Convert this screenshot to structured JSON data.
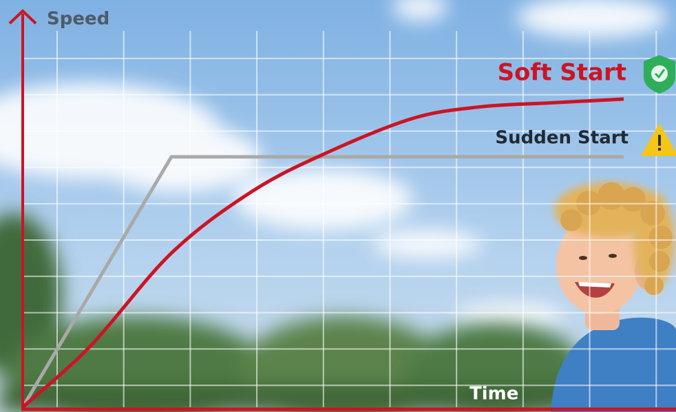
{
  "chart_data": {
    "type": "line",
    "y_label": "Speed",
    "x_label": "Time",
    "xlim": [
      0,
      100
    ],
    "ylim": [
      0,
      100
    ],
    "grid": true,
    "series": [
      {
        "name": "Soft Start",
        "color": "#cc1424",
        "smooth": true,
        "x": [
          0,
          11,
          24,
          37,
          49,
          63,
          74,
          85,
          97
        ],
        "values": [
          0,
          16,
          40,
          56,
          66,
          75,
          78,
          79,
          80
        ]
      },
      {
        "name": "Sudden Start",
        "color": "#a9a9a9",
        "smooth": false,
        "x": [
          0,
          24,
          97
        ],
        "values": [
          0,
          65,
          65
        ]
      }
    ]
  }
}
